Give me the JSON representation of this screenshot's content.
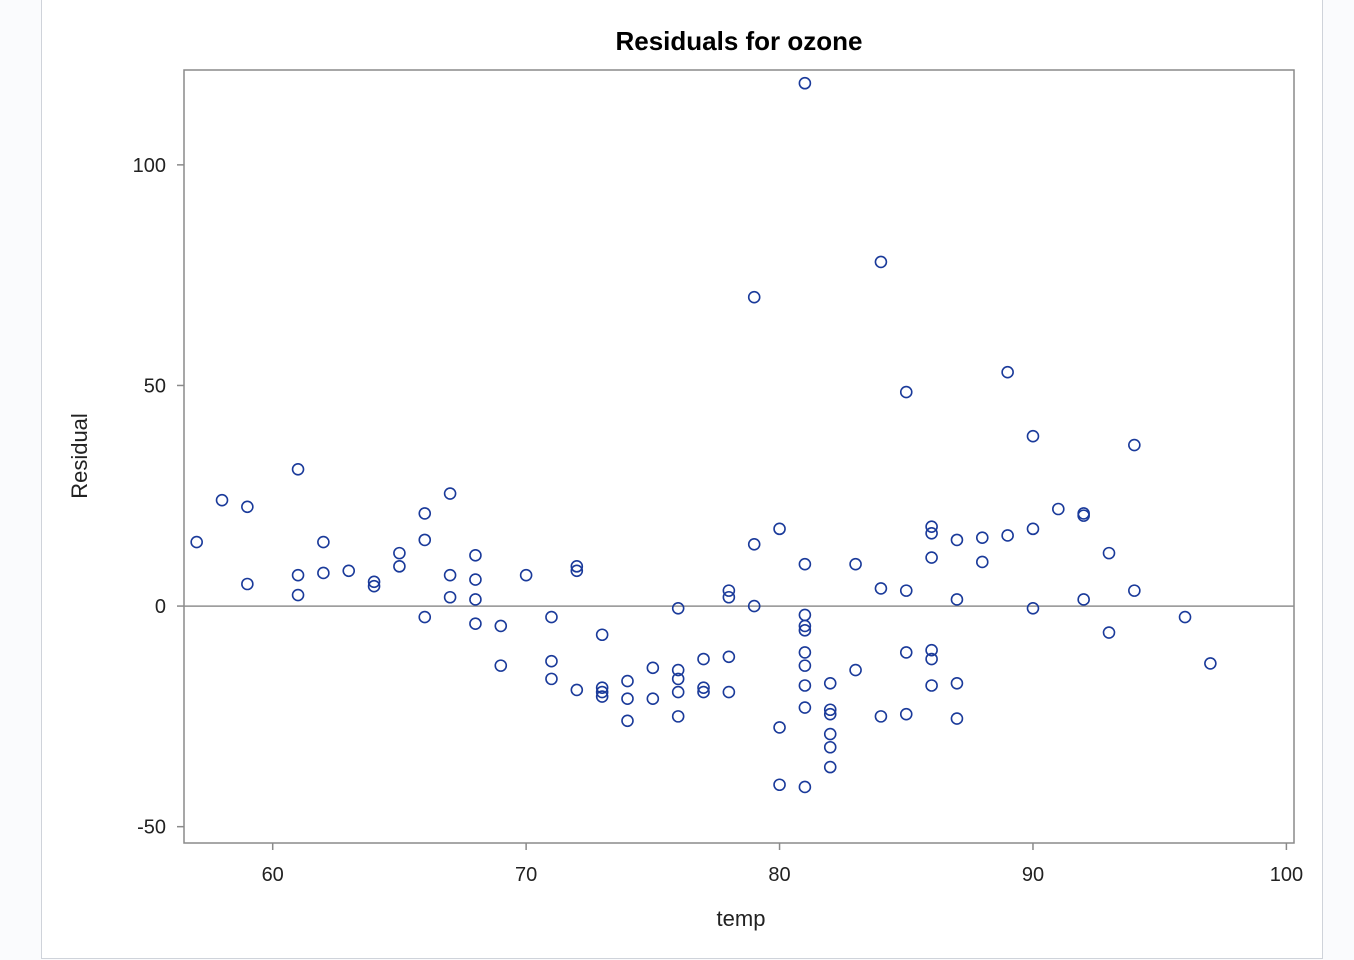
{
  "chart_data": {
    "type": "scatter",
    "title": "Residuals for ozone",
    "xlabel": "temp",
    "ylabel": "Residual",
    "xlim": [
      56.5,
      100.3
    ],
    "ylim": [
      -53.7,
      121.5
    ],
    "xticks": [
      60,
      70,
      80,
      90,
      100
    ],
    "yticks": [
      -50,
      0,
      50,
      100
    ],
    "reference_line_y": 0,
    "grid": false,
    "marker": "open-circle",
    "marker_color": "#1a3a9a",
    "reference_line_color": "#909090",
    "points": [
      [
        57,
        14.5
      ],
      [
        58,
        24
      ],
      [
        59,
        22.5
      ],
      [
        59,
        5
      ],
      [
        61,
        31
      ],
      [
        61,
        7
      ],
      [
        61,
        2.5
      ],
      [
        62,
        14.5
      ],
      [
        62,
        7.5
      ],
      [
        63,
        8
      ],
      [
        64,
        5.5
      ],
      [
        64,
        4.5
      ],
      [
        65,
        12
      ],
      [
        65,
        9
      ],
      [
        66,
        21
      ],
      [
        66,
        15
      ],
      [
        66,
        -2.5
      ],
      [
        67,
        25.5
      ],
      [
        67,
        7
      ],
      [
        67,
        2
      ],
      [
        68,
        11.5
      ],
      [
        68,
        6
      ],
      [
        68,
        1.5
      ],
      [
        68,
        -4
      ],
      [
        69,
        -4.5
      ],
      [
        69,
        -13.5
      ],
      [
        70,
        7
      ],
      [
        71,
        -2.5
      ],
      [
        71,
        -12.5
      ],
      [
        71,
        -16.5
      ],
      [
        72,
        9
      ],
      [
        72,
        8
      ],
      [
        72,
        -19
      ],
      [
        73,
        -6.5
      ],
      [
        73,
        -18.5
      ],
      [
        73,
        -19.5
      ],
      [
        73,
        -20.5
      ],
      [
        74,
        -17
      ],
      [
        74,
        -21
      ],
      [
        74,
        -26
      ],
      [
        75,
        -14
      ],
      [
        75,
        -21
      ],
      [
        76,
        -0.5
      ],
      [
        76,
        -14.5
      ],
      [
        76,
        -16.5
      ],
      [
        76,
        -19.5
      ],
      [
        76,
        -25
      ],
      [
        77,
        -12
      ],
      [
        77,
        -18.5
      ],
      [
        77,
        -19.5
      ],
      [
        78,
        3.5
      ],
      [
        78,
        2
      ],
      [
        78,
        -11.5
      ],
      [
        78,
        -19.5
      ],
      [
        79,
        70
      ],
      [
        79,
        14
      ],
      [
        79,
        0
      ],
      [
        80,
        17.5
      ],
      [
        80,
        -27.5
      ],
      [
        80,
        -40.5
      ],
      [
        81,
        118.5
      ],
      [
        81,
        9.5
      ],
      [
        81,
        -2
      ],
      [
        81,
        -4.5
      ],
      [
        81,
        -5.5
      ],
      [
        81,
        -10.5
      ],
      [
        81,
        -13.5
      ],
      [
        81,
        -18
      ],
      [
        81,
        -23
      ],
      [
        81,
        -41
      ],
      [
        82,
        -17.5
      ],
      [
        82,
        -23.5
      ],
      [
        82,
        -24.5
      ],
      [
        82,
        -29
      ],
      [
        82,
        -32
      ],
      [
        82,
        -36.5
      ],
      [
        83,
        9.5
      ],
      [
        83,
        -14.5
      ],
      [
        84,
        78
      ],
      [
        84,
        4
      ],
      [
        84,
        -25
      ],
      [
        85,
        48.5
      ],
      [
        85,
        3.5
      ],
      [
        85,
        -10.5
      ],
      [
        85,
        -24.5
      ],
      [
        86,
        18
      ],
      [
        86,
        16.5
      ],
      [
        86,
        11
      ],
      [
        86,
        -10
      ],
      [
        86,
        -12
      ],
      [
        86,
        -18
      ],
      [
        87,
        15
      ],
      [
        87,
        1.5
      ],
      [
        87,
        -17.5
      ],
      [
        87,
        -25.5
      ],
      [
        88,
        15.5
      ],
      [
        88,
        10
      ],
      [
        89,
        53
      ],
      [
        89,
        16
      ],
      [
        90,
        38.5
      ],
      [
        90,
        17.5
      ],
      [
        90,
        -0.5
      ],
      [
        91,
        22
      ],
      [
        92,
        21
      ],
      [
        92,
        20.5
      ],
      [
        92,
        1.5
      ],
      [
        93,
        12
      ],
      [
        93,
        -6
      ],
      [
        94,
        36.5
      ],
      [
        94,
        3.5
      ],
      [
        96,
        -2.5
      ],
      [
        97,
        -13
      ]
    ]
  }
}
